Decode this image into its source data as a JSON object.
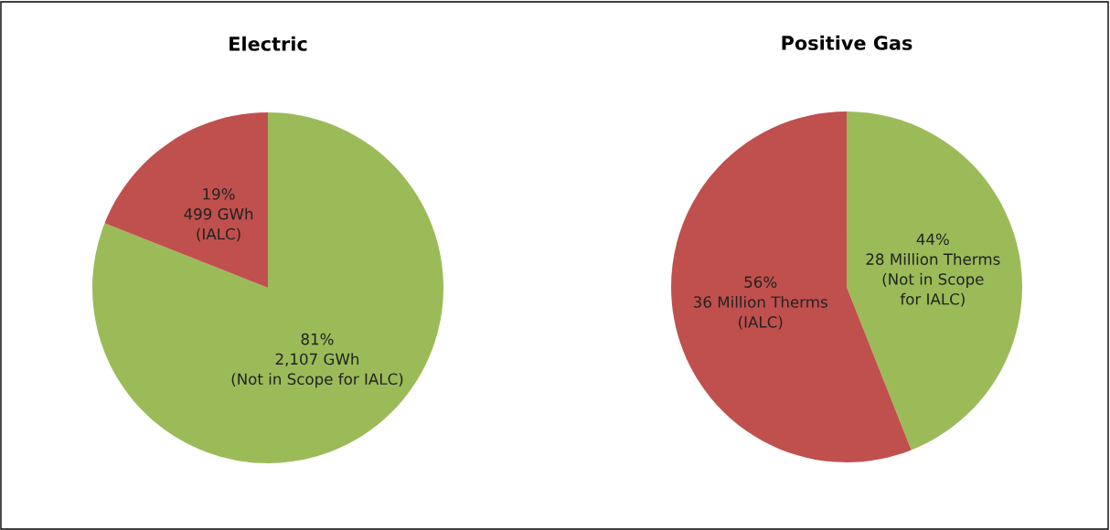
{
  "chart_data": [
    {
      "type": "pie",
      "title": "Electric",
      "categories": [
        null,
        null
      ],
      "values": [
        81,
        19
      ],
      "colors": [
        "#9bbb59",
        "#c0504d"
      ],
      "value_labels": [
        "81%\n2,107 GWh\n(Not in Scope for IALC)",
        "19%\n499 GWh\n(IALC)"
      ]
    },
    {
      "type": "pie",
      "title": "Positive Gas",
      "categories": [
        null,
        null
      ],
      "values": [
        44,
        56
      ],
      "colors": [
        "#9bbb59",
        "#c0504d"
      ],
      "value_labels": [
        "44%\n28 Million Therms\n(Not in Scope\nfor IALC)",
        "56%\n36 Million Therms\n(IALC)"
      ]
    }
  ]
}
